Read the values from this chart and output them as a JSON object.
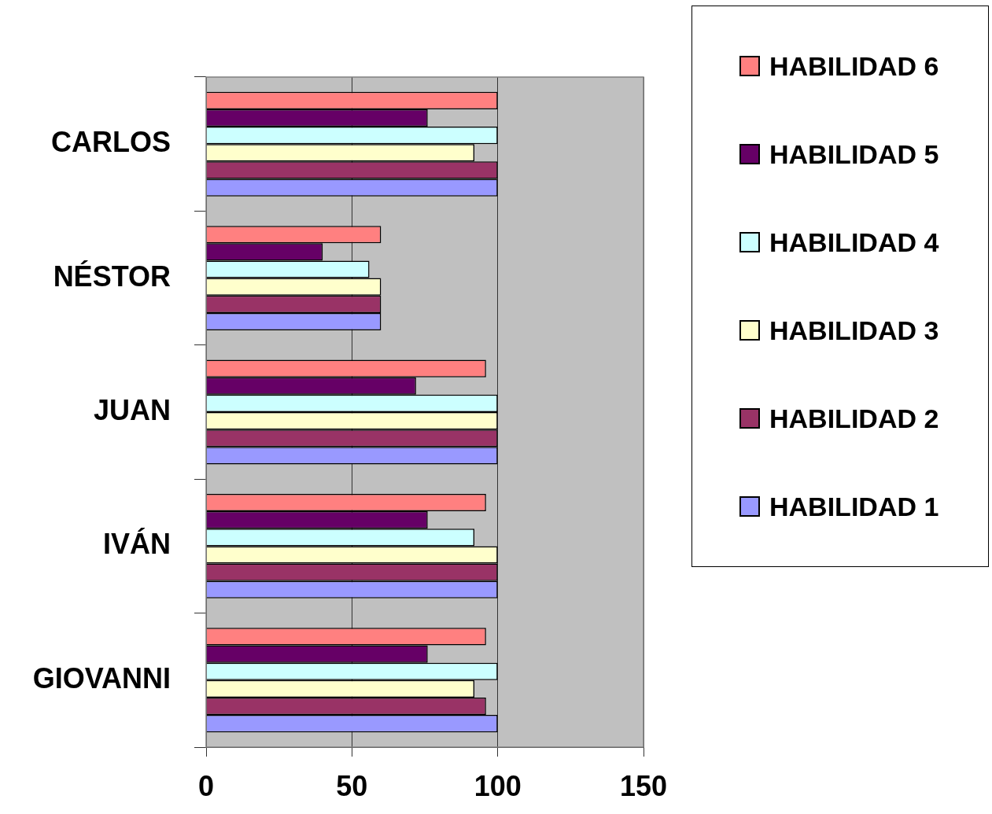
{
  "chart_data": {
    "type": "bar",
    "orientation": "horizontal",
    "categories": [
      "CARLOS",
      "NÉSTOR",
      "JUAN",
      "IVÁN",
      "GIOVANNI"
    ],
    "series": [
      {
        "name": "HABILIDAD 1",
        "color": "#9999ff",
        "values": [
          100,
          60,
          100,
          100,
          100
        ]
      },
      {
        "name": "HABILIDAD 2",
        "color": "#993366",
        "values": [
          100,
          60,
          100,
          100,
          96
        ]
      },
      {
        "name": "HABILIDAD 3",
        "color": "#ffffcc",
        "values": [
          92,
          60,
          100,
          100,
          92
        ]
      },
      {
        "name": "HABILIDAD 4",
        "color": "#ccffff",
        "values": [
          100,
          56,
          100,
          92,
          100
        ]
      },
      {
        "name": "HABILIDAD 5",
        "color": "#660066",
        "values": [
          76,
          40,
          72,
          76,
          76
        ]
      },
      {
        "name": "HABILIDAD 6",
        "color": "#ff8080",
        "values": [
          100,
          60,
          96,
          96,
          96
        ]
      }
    ],
    "xlim": [
      0,
      150
    ],
    "xticks": [
      0,
      50,
      100,
      150
    ],
    "grid": "x",
    "legend": "right"
  }
}
